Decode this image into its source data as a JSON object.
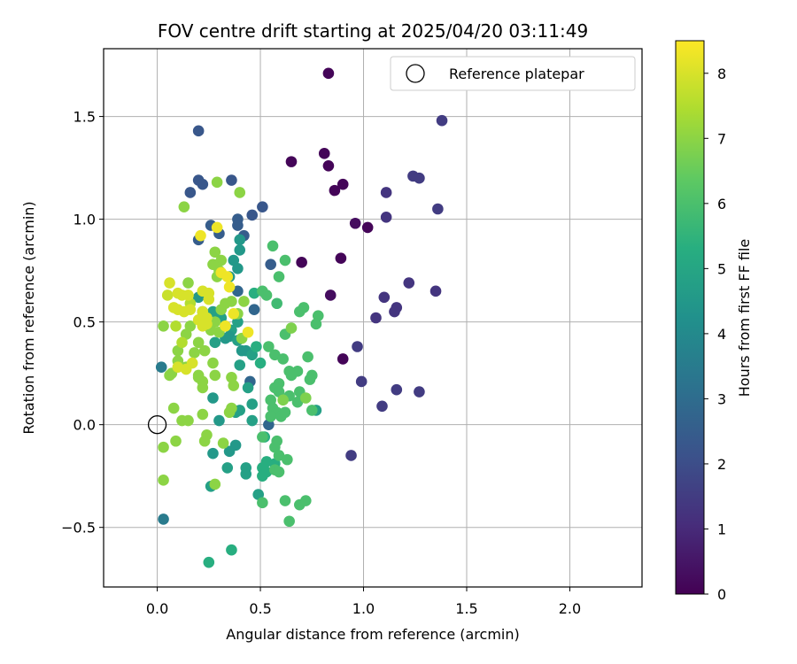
{
  "chart_data": {
    "type": "scatter",
    "title": "FOV centre drift starting at 2025/04/20 03:11:49",
    "xlabel": "Angular distance from reference (arcmin)",
    "ylabel": "Rotation from reference (arcmin)",
    "xlim": [
      -0.26,
      2.35
    ],
    "ylim": [
      -0.79,
      1.83
    ],
    "xticks": [
      0.0,
      0.5,
      1.0,
      1.5,
      2.0
    ],
    "xtick_labels": [
      "0.0",
      "0.5",
      "1.0",
      "1.5",
      "2.0"
    ],
    "yticks": [
      -0.5,
      0.0,
      0.5,
      1.0,
      1.5
    ],
    "ytick_labels": [
      "−0.5",
      "0.0",
      "0.5",
      "1.0",
      "1.5"
    ],
    "grid": true,
    "colormap": "viridis",
    "colorbar": {
      "label": "Hours from first FF file",
      "range": [
        0,
        8.5
      ],
      "ticks": [
        0,
        1,
        2,
        3,
        4,
        5,
        6,
        7,
        8
      ],
      "tick_labels": [
        "0",
        "1",
        "2",
        "3",
        "4",
        "5",
        "6",
        "7",
        "8"
      ]
    },
    "legend": {
      "placement": "top-right",
      "entries": [
        {
          "label": "Reference platepar",
          "marker": "open-circle",
          "x": 0.0,
          "y": 0.0
        }
      ]
    },
    "points": [
      [
        0.83,
        1.71,
        0.1
      ],
      [
        0.81,
        1.32,
        0.1
      ],
      [
        0.83,
        1.26,
        0.1
      ],
      [
        0.65,
        1.28,
        0.1
      ],
      [
        0.86,
        1.14,
        0.1
      ],
      [
        0.9,
        1.17,
        0.1
      ],
      [
        0.96,
        0.98,
        0.3
      ],
      [
        1.02,
        0.96,
        0.1
      ],
      [
        0.89,
        0.81,
        0.1
      ],
      [
        0.7,
        0.79,
        0.1
      ],
      [
        0.84,
        0.63,
        0.3
      ],
      [
        0.9,
        0.32,
        0.1
      ],
      [
        1.38,
        1.48,
        1.5
      ],
      [
        1.24,
        1.21,
        1.5
      ],
      [
        1.27,
        1.2,
        1.5
      ],
      [
        1.36,
        1.05,
        1.5
      ],
      [
        1.11,
        1.13,
        1.3
      ],
      [
        1.11,
        1.01,
        1.3
      ],
      [
        1.22,
        0.69,
        1.3
      ],
      [
        1.35,
        0.65,
        1.3
      ],
      [
        1.1,
        0.62,
        1.3
      ],
      [
        1.16,
        0.57,
        1.3
      ],
      [
        1.15,
        0.55,
        1.3
      ],
      [
        1.06,
        0.52,
        1.3
      ],
      [
        0.97,
        0.38,
        1.5
      ],
      [
        0.99,
        0.21,
        1.5
      ],
      [
        1.16,
        0.17,
        1.5
      ],
      [
        1.27,
        0.16,
        1.5
      ],
      [
        1.09,
        0.09,
        1.5
      ],
      [
        0.94,
        -0.15,
        1.5
      ],
      [
        0.2,
        1.43,
        2.3
      ],
      [
        0.2,
        1.19,
        2.3
      ],
      [
        0.22,
        1.17,
        2.3
      ],
      [
        0.36,
        1.19,
        2.3
      ],
      [
        0.16,
        1.13,
        2.3
      ],
      [
        0.51,
        1.06,
        2.3
      ],
      [
        0.46,
        1.02,
        2.3
      ],
      [
        0.39,
        1.0,
        2.5
      ],
      [
        0.39,
        0.97,
        2.5
      ],
      [
        0.26,
        0.97,
        2.5
      ],
      [
        0.3,
        0.93,
        2.5
      ],
      [
        0.2,
        0.9,
        2.5
      ],
      [
        0.42,
        0.92,
        2.5
      ],
      [
        0.55,
        0.78,
        2.5
      ],
      [
        0.39,
        0.65,
        2.8
      ],
      [
        0.47,
        0.56,
        2.8
      ],
      [
        0.45,
        0.21,
        2.8
      ],
      [
        0.54,
        0.0,
        2.8
      ],
      [
        0.03,
        -0.46,
        3.5
      ],
      [
        0.02,
        0.28,
        3.5
      ],
      [
        0.4,
        0.9,
        4.5
      ],
      [
        0.4,
        0.85,
        4.5
      ],
      [
        0.37,
        0.8,
        4.5
      ],
      [
        0.39,
        0.76,
        4.5
      ],
      [
        0.35,
        0.72,
        4.5
      ],
      [
        0.2,
        0.62,
        4.5
      ],
      [
        0.22,
        0.55,
        4.5
      ],
      [
        0.27,
        0.55,
        4.8
      ],
      [
        0.31,
        0.52,
        4.8
      ],
      [
        0.39,
        0.5,
        4.8
      ],
      [
        0.36,
        0.46,
        4.8
      ],
      [
        0.35,
        0.43,
        4.5
      ],
      [
        0.33,
        0.42,
        4.5
      ],
      [
        0.28,
        0.4,
        4.8
      ],
      [
        0.39,
        0.41,
        4.8
      ],
      [
        0.41,
        0.36,
        4.5
      ],
      [
        0.43,
        0.36,
        4.5
      ],
      [
        0.46,
        0.34,
        4.8
      ],
      [
        0.4,
        0.29,
        4.8
      ],
      [
        0.44,
        0.18,
        4.8
      ],
      [
        0.27,
        0.13,
        4.5
      ],
      [
        0.37,
        0.07,
        4.5
      ],
      [
        0.38,
        0.06,
        4.8
      ],
      [
        0.4,
        0.07,
        4.8
      ],
      [
        0.46,
        0.02,
        4.8
      ],
      [
        0.46,
        0.1,
        4.8
      ],
      [
        0.3,
        0.02,
        4.5
      ],
      [
        0.38,
        -0.1,
        4.5
      ],
      [
        0.35,
        -0.13,
        4.5
      ],
      [
        0.27,
        -0.14,
        4.5
      ],
      [
        0.34,
        -0.21,
        4.8
      ],
      [
        0.43,
        -0.21,
        4.8
      ],
      [
        0.43,
        -0.24,
        4.8
      ],
      [
        0.49,
        -0.34,
        4.8
      ],
      [
        0.26,
        -0.3,
        4.8
      ],
      [
        0.36,
        -0.61,
        5.3
      ],
      [
        0.25,
        -0.67,
        5.3
      ],
      [
        0.47,
        0.64,
        5.3
      ],
      [
        0.48,
        0.38,
        5.3
      ],
      [
        0.5,
        0.3,
        5.3
      ],
      [
        0.52,
        -0.06,
        5.3
      ],
      [
        0.53,
        -0.18,
        5.3
      ],
      [
        0.51,
        -0.21,
        5.3
      ],
      [
        0.57,
        -0.19,
        5.3
      ],
      [
        0.53,
        -0.23,
        5.3
      ],
      [
        0.51,
        -0.25,
        5.3
      ],
      [
        0.77,
        0.07,
        4.8
      ],
      [
        0.56,
        0.87,
        6.0
      ],
      [
        0.62,
        0.8,
        6.0
      ],
      [
        0.59,
        0.72,
        6.0
      ],
      [
        0.51,
        0.65,
        6.0
      ],
      [
        0.53,
        0.63,
        6.0
      ],
      [
        0.58,
        0.59,
        5.8
      ],
      [
        0.71,
        0.57,
        6.0
      ],
      [
        0.69,
        0.55,
        6.0
      ],
      [
        0.78,
        0.53,
        6.0
      ],
      [
        0.77,
        0.49,
        6.0
      ],
      [
        0.62,
        0.44,
        6.0
      ],
      [
        0.54,
        0.38,
        6.0
      ],
      [
        0.57,
        0.34,
        6.0
      ],
      [
        0.61,
        0.32,
        6.0
      ],
      [
        0.64,
        0.26,
        6.0
      ],
      [
        0.68,
        0.26,
        6.0
      ],
      [
        0.65,
        0.24,
        6.0
      ],
      [
        0.75,
        0.24,
        6.0
      ],
      [
        0.74,
        0.22,
        6.0
      ],
      [
        0.59,
        0.2,
        6.0
      ],
      [
        0.57,
        0.18,
        6.0
      ],
      [
        0.59,
        0.16,
        6.0
      ],
      [
        0.64,
        0.14,
        6.0
      ],
      [
        0.69,
        0.16,
        6.0
      ],
      [
        0.68,
        0.11,
        6.0
      ],
      [
        0.55,
        0.12,
        6.0
      ],
      [
        0.56,
        0.08,
        6.0
      ],
      [
        0.58,
        0.06,
        6.0
      ],
      [
        0.6,
        0.04,
        6.0
      ],
      [
        0.62,
        0.06,
        6.0
      ],
      [
        0.55,
        0.04,
        6.0
      ],
      [
        0.51,
        -0.06,
        6.0
      ],
      [
        0.58,
        -0.08,
        6.0
      ],
      [
        0.57,
        -0.11,
        6.0
      ],
      [
        0.59,
        -0.15,
        6.0
      ],
      [
        0.63,
        -0.17,
        6.0
      ],
      [
        0.57,
        -0.22,
        6.0
      ],
      [
        0.59,
        -0.23,
        6.0
      ],
      [
        0.51,
        -0.38,
        6.0
      ],
      [
        0.62,
        -0.37,
        6.0
      ],
      [
        0.69,
        -0.39,
        6.0
      ],
      [
        0.72,
        -0.37,
        6.0
      ],
      [
        0.64,
        -0.47,
        6.0
      ],
      [
        0.73,
        0.33,
        6.0
      ],
      [
        0.75,
        0.07,
        6.0
      ],
      [
        0.65,
        0.47,
        6.8
      ],
      [
        0.72,
        0.13,
        6.8
      ],
      [
        0.61,
        0.12,
        6.8
      ],
      [
        0.29,
        1.18,
        7.0
      ],
      [
        0.4,
        1.13,
        7.0
      ],
      [
        0.13,
        1.06,
        7.0
      ],
      [
        0.28,
        0.84,
        7.0
      ],
      [
        0.15,
        0.69,
        7.0
      ],
      [
        0.29,
        0.72,
        7.0
      ],
      [
        0.3,
        0.75,
        7.0
      ],
      [
        0.31,
        0.8,
        7.0
      ],
      [
        0.27,
        0.78,
        7.0
      ],
      [
        0.36,
        0.6,
        7.0
      ],
      [
        0.42,
        0.6,
        7.0
      ],
      [
        0.39,
        0.54,
        7.0
      ],
      [
        0.33,
        0.59,
        7.0
      ],
      [
        0.31,
        0.56,
        7.0
      ],
      [
        0.28,
        0.5,
        7.0
      ],
      [
        0.33,
        0.48,
        7.0
      ],
      [
        0.3,
        0.45,
        7.0
      ],
      [
        0.26,
        0.46,
        7.0
      ],
      [
        0.16,
        0.48,
        7.0
      ],
      [
        0.14,
        0.44,
        7.0
      ],
      [
        0.1,
        0.36,
        7.0
      ],
      [
        0.1,
        0.31,
        7.0
      ],
      [
        0.14,
        0.28,
        7.0
      ],
      [
        0.18,
        0.35,
        7.0
      ],
      [
        0.2,
        0.4,
        7.0
      ],
      [
        0.23,
        0.36,
        7.0
      ],
      [
        0.07,
        0.25,
        7.0
      ],
      [
        0.2,
        0.24,
        7.0
      ],
      [
        0.22,
        0.21,
        7.0
      ],
      [
        0.22,
        0.18,
        7.0
      ],
      [
        0.2,
        0.23,
        7.0
      ],
      [
        0.28,
        0.24,
        7.0
      ],
      [
        0.36,
        0.23,
        7.0
      ],
      [
        0.37,
        0.19,
        7.0
      ],
      [
        0.27,
        0.3,
        7.0
      ],
      [
        0.22,
        0.05,
        7.0
      ],
      [
        0.36,
        0.08,
        7.0
      ],
      [
        0.35,
        0.06,
        7.0
      ],
      [
        0.41,
        0.42,
        7.0
      ],
      [
        0.24,
        -0.05,
        7.0
      ],
      [
        0.23,
        -0.08,
        7.0
      ],
      [
        0.32,
        -0.09,
        7.0
      ],
      [
        0.09,
        -0.08,
        7.0
      ],
      [
        0.03,
        -0.11,
        7.0
      ],
      [
        0.03,
        -0.27,
        7.0
      ],
      [
        0.08,
        0.08,
        7.0
      ],
      [
        0.12,
        0.02,
        7.0
      ],
      [
        0.15,
        0.02,
        7.0
      ],
      [
        0.06,
        0.24,
        7.0
      ],
      [
        0.03,
        0.48,
        7.0
      ],
      [
        0.28,
        -0.29,
        7.0
      ],
      [
        0.16,
        0.59,
        7.5
      ],
      [
        0.09,
        0.48,
        7.5
      ],
      [
        0.12,
        0.4,
        7.5
      ],
      [
        0.05,
        0.63,
        7.8
      ],
      [
        0.06,
        0.69,
        8.0
      ],
      [
        0.1,
        0.64,
        8.0
      ],
      [
        0.12,
        0.63,
        8.0
      ],
      [
        0.15,
        0.63,
        8.0
      ],
      [
        0.08,
        0.57,
        8.0
      ],
      [
        0.1,
        0.56,
        8.0
      ],
      [
        0.13,
        0.55,
        8.0
      ],
      [
        0.16,
        0.56,
        8.0
      ],
      [
        0.22,
        0.55,
        8.0
      ],
      [
        0.24,
        0.52,
        8.0
      ],
      [
        0.2,
        0.51,
        8.0
      ],
      [
        0.22,
        0.48,
        8.0
      ],
      [
        0.22,
        0.65,
        8.0
      ],
      [
        0.25,
        0.64,
        8.0
      ],
      [
        0.25,
        0.61,
        8.0
      ],
      [
        0.24,
        0.49,
        8.0
      ],
      [
        0.29,
        0.96,
        8.3
      ],
      [
        0.21,
        0.92,
        8.3
      ],
      [
        0.31,
        0.74,
        8.3
      ],
      [
        0.34,
        0.72,
        8.3
      ],
      [
        0.35,
        0.67,
        8.3
      ],
      [
        0.37,
        0.54,
        8.3
      ],
      [
        0.44,
        0.45,
        8.3
      ],
      [
        0.33,
        0.48,
        8.3
      ],
      [
        0.1,
        0.28,
        8.0
      ],
      [
        0.17,
        0.3,
        8.0
      ],
      [
        0.14,
        0.27,
        8.0
      ]
    ]
  }
}
